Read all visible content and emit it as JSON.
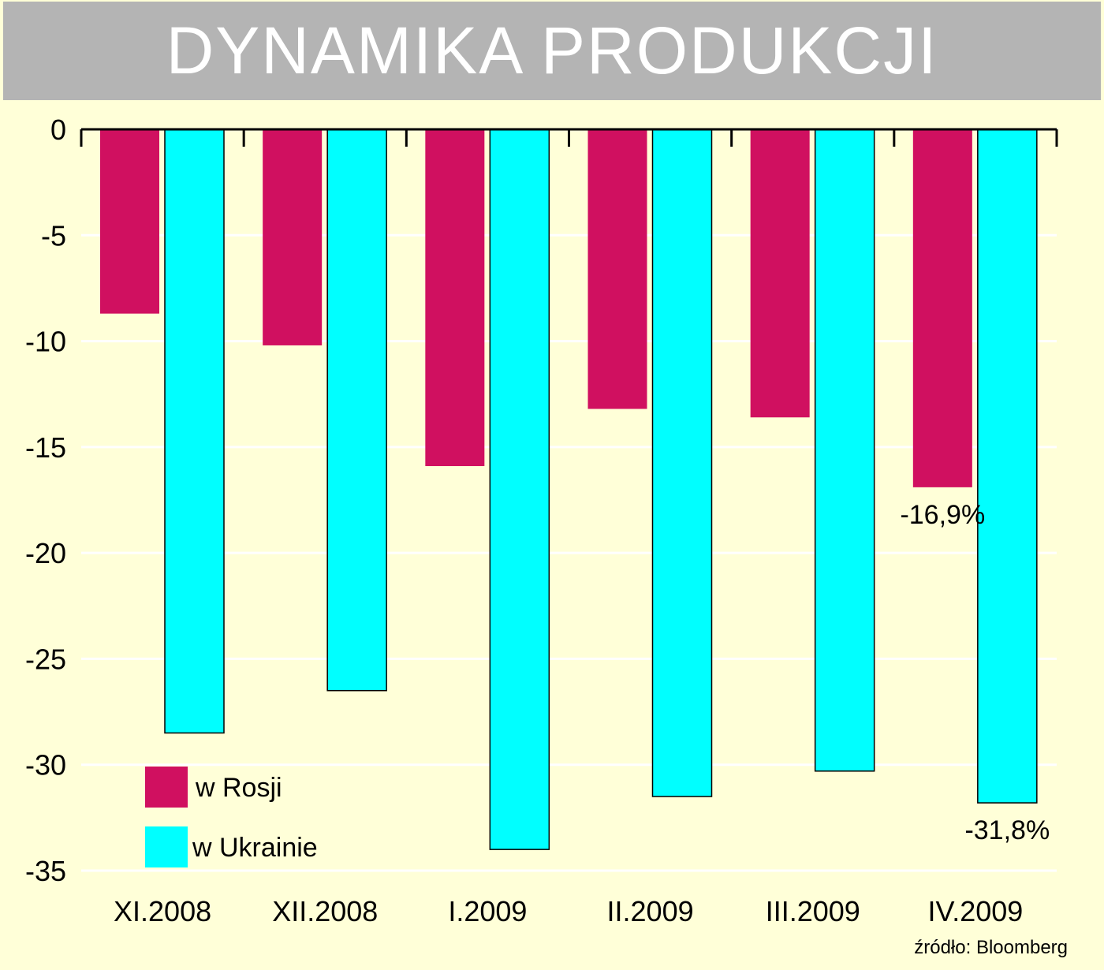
{
  "chart_data": {
    "type": "bar",
    "title": "DYNAMIKA PRODUKCJI",
    "categories": [
      "XI.2008",
      "XII.2008",
      "I.2009",
      "II.2009",
      "III.2009",
      "IV.2009"
    ],
    "series": [
      {
        "name": "w Rosji",
        "color": "#d01060",
        "values": [
          -8.7,
          -10.2,
          -15.9,
          -13.2,
          -13.6,
          -16.9
        ]
      },
      {
        "name": "w Ukrainie",
        "color": "#00ffff",
        "values": [
          -28.5,
          -26.5,
          -34.0,
          -31.5,
          -30.3,
          -31.8
        ]
      }
    ],
    "ylim": [
      -35,
      0
    ],
    "yticks": [
      0,
      -5,
      -10,
      -15,
      -20,
      -25,
      -30,
      -35
    ],
    "grid": true,
    "legend_position": "bottom-left",
    "annotations": [
      {
        "series": "w Rosji",
        "category": "IV.2009",
        "text": "-16,9%"
      },
      {
        "series": "w Ukrainie",
        "category": "IV.2009",
        "text": "-31,8%"
      }
    ],
    "source": "źródło: Bloomberg"
  }
}
